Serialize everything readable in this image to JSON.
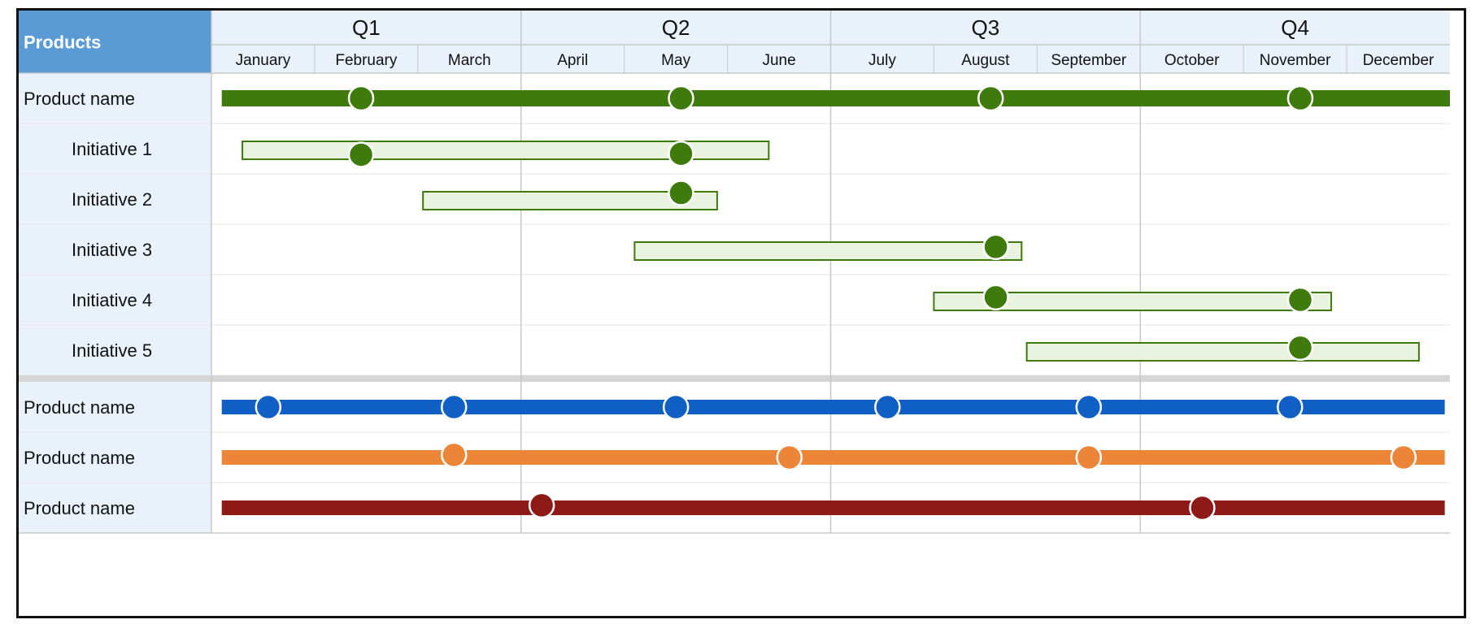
{
  "colors": {
    "header_fill": "#e9f2fb",
    "products_header_fill": "#5b9bd5",
    "grid_line": "#c8c8c8",
    "row_separator": "#e6e6e6",
    "group_separator": "#d6d6d6",
    "green": "#3f7a0c",
    "green_light": "#e9f3e0",
    "blue": "#0f5fc5",
    "orange": "#ed8539",
    "red": "#8e1a17"
  },
  "chart_data": {
    "type": "gantt",
    "header": {
      "products_label": "Products",
      "quarters": [
        "Q1",
        "Q2",
        "Q3",
        "Q4"
      ],
      "months": [
        "January",
        "February",
        "March",
        "April",
        "May",
        "June",
        "July",
        "August",
        "September",
        "October",
        "November",
        "December"
      ]
    },
    "x_unit": "month (0 = start of January, 12 = end of December)",
    "rows": [
      {
        "label": "Product name",
        "indent": false,
        "style": "product",
        "color": "#3f7a0c",
        "start": 0.1,
        "end": 12.0,
        "milestones": [
          1.45,
          4.55,
          7.55,
          10.55
        ]
      },
      {
        "label": "Initiative 1",
        "indent": true,
        "style": "initiative",
        "color": "#3f7a0c",
        "start": 0.3,
        "end": 5.4,
        "milestones": [
          1.45,
          4.55
        ],
        "milestone_offsets": [
          0.12,
          0.1
        ]
      },
      {
        "label": "Initiative 2",
        "indent": true,
        "style": "initiative",
        "color": "#3f7a0c",
        "start": 2.05,
        "end": 4.9,
        "milestones": [
          4.55
        ],
        "milestone_offsets": [
          -0.12
        ]
      },
      {
        "label": "Initiative 3",
        "indent": true,
        "style": "initiative",
        "color": "#3f7a0c",
        "start": 4.1,
        "end": 7.85,
        "milestones": [
          7.6
        ],
        "milestone_offsets": [
          -0.05
        ]
      },
      {
        "label": "Initiative 4",
        "indent": true,
        "style": "initiative",
        "color": "#3f7a0c",
        "start": 7.0,
        "end": 10.85,
        "milestones": [
          7.6,
          10.55
        ],
        "milestone_offsets": [
          -0.05,
          0
        ]
      },
      {
        "label": "Initiative 5",
        "indent": true,
        "style": "initiative",
        "color": "#3f7a0c",
        "start": 7.9,
        "end": 11.7,
        "milestones": [
          10.55
        ],
        "milestone_offsets": [
          -0.05
        ]
      },
      {
        "label": "Product name",
        "indent": false,
        "style": "product",
        "color": "#0f5fc5",
        "start": 0.1,
        "end": 11.95,
        "milestones": [
          0.55,
          2.35,
          4.5,
          6.55,
          8.5,
          10.45
        ]
      },
      {
        "label": "Product name",
        "indent": false,
        "style": "product",
        "color": "#ed8539",
        "start": 0.1,
        "end": 11.95,
        "milestones": [
          2.35,
          5.6,
          8.5,
          11.55
        ],
        "milestone_offsets": [
          -0.05,
          0,
          0,
          0
        ]
      },
      {
        "label": "Product name",
        "indent": false,
        "style": "product",
        "color": "#8e1a17",
        "start": 0.1,
        "end": 11.95,
        "milestones": [
          3.2,
          9.6
        ],
        "milestone_offsets": [
          -0.05,
          0
        ]
      }
    ]
  }
}
